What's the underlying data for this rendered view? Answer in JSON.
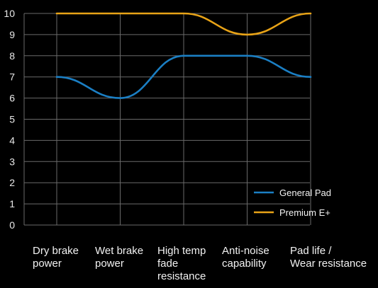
{
  "chart_data": {
    "type": "line",
    "categories": [
      "Dry brake power",
      "Wet brake power",
      "High temp fade resistance",
      "Anti-noise capability",
      "Pad life / Wear resistance"
    ],
    "category_lines": [
      [
        "Dry brake",
        "power"
      ],
      [
        "Wet brake",
        "power"
      ],
      [
        "High temp",
        "fade",
        "resistance"
      ],
      [
        "Anti-noise",
        "capability"
      ],
      [
        "Pad life /",
        "Wear resistance"
      ]
    ],
    "yticks": [
      "0",
      "1",
      "2",
      "3",
      "4",
      "5",
      "6",
      "7",
      "8",
      "9",
      "10"
    ],
    "ylim": [
      0,
      10
    ],
    "grid": true,
    "legend_position": "bottom-right",
    "smooth": true,
    "series": [
      {
        "name": "General Pad",
        "values": [
          7,
          6,
          8,
          8,
          7
        ],
        "color": "#1b7fc4"
      },
      {
        "name": "Premium E+",
        "values": [
          10,
          10,
          10,
          9,
          10
        ],
        "color": "#e8a317"
      }
    ],
    "colors": {
      "background": "#000000",
      "grid": "#6a6a6a",
      "text": "#f2f2f2"
    }
  }
}
